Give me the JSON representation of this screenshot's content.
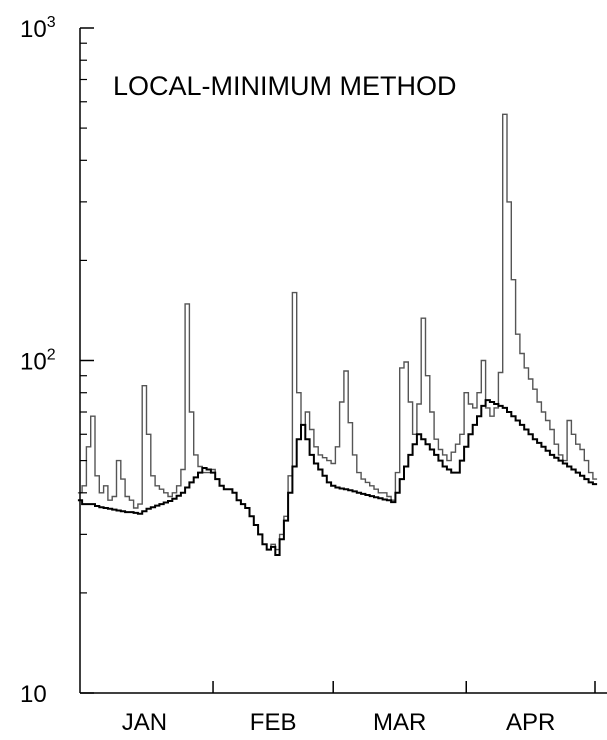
{
  "chart_data": {
    "type": "line",
    "title": "",
    "annotation": "LOCAL-MINIMUM METHOD",
    "xlabel": "",
    "ylabel": "",
    "y_scale": "log",
    "ylim": [
      10,
      1000
    ],
    "grid": false,
    "step_plot": true,
    "x_unit": "day of year",
    "xlim": [
      1,
      121
    ],
    "x_tick_labels": [
      "JAN",
      "FEB",
      "MAR",
      "APR"
    ],
    "y_tick_labels": [
      {
        "base": "10",
        "exp": ""
      },
      {
        "base": "10",
        "exp": "2"
      },
      {
        "base": "10",
        "exp": "3"
      }
    ],
    "series": [
      {
        "role": "streamflow",
        "color": "#555555",
        "points": [
          [
            1,
            40
          ],
          [
            2,
            42
          ],
          [
            3,
            55
          ],
          [
            4,
            68
          ],
          [
            5,
            45
          ],
          [
            6,
            40
          ],
          [
            7,
            42
          ],
          [
            8,
            38
          ],
          [
            9,
            39
          ],
          [
            10,
            50
          ],
          [
            11,
            44
          ],
          [
            12,
            39
          ],
          [
            13,
            38
          ],
          [
            14,
            36
          ],
          [
            15,
            37
          ],
          [
            16,
            84
          ],
          [
            17,
            60
          ],
          [
            18,
            45
          ],
          [
            19,
            42
          ],
          [
            20,
            41
          ],
          [
            21,
            40
          ],
          [
            22,
            39
          ],
          [
            23,
            40
          ],
          [
            24,
            42
          ],
          [
            25,
            47
          ],
          [
            26,
            148
          ],
          [
            27,
            70
          ],
          [
            28,
            52
          ],
          [
            29,
            48
          ],
          [
            30,
            46
          ],
          [
            31,
            46
          ],
          [
            32,
            47
          ],
          [
            33,
            44
          ],
          [
            34,
            42
          ],
          [
            35,
            41
          ],
          [
            36,
            41
          ],
          [
            37,
            40
          ],
          [
            38,
            38
          ],
          [
            39,
            37
          ],
          [
            40,
            36
          ],
          [
            41,
            34
          ],
          [
            42,
            32
          ],
          [
            43,
            30
          ],
          [
            44,
            28
          ],
          [
            45,
            27
          ],
          [
            46,
            28
          ],
          [
            47,
            27
          ],
          [
            48,
            30
          ],
          [
            49,
            34
          ],
          [
            50,
            45
          ],
          [
            51,
            160
          ],
          [
            52,
            80
          ],
          [
            53,
            64
          ],
          [
            54,
            70
          ],
          [
            55,
            62
          ],
          [
            56,
            55
          ],
          [
            57,
            52
          ],
          [
            58,
            51
          ],
          [
            59,
            50
          ],
          [
            60,
            49
          ],
          [
            61,
            55
          ],
          [
            62,
            75
          ],
          [
            63,
            93
          ],
          [
            64,
            65
          ],
          [
            65,
            52
          ],
          [
            66,
            46
          ],
          [
            67,
            44
          ],
          [
            68,
            43
          ],
          [
            69,
            42
          ],
          [
            70,
            41
          ],
          [
            71,
            40
          ],
          [
            72,
            40
          ],
          [
            73,
            39
          ],
          [
            74,
            38
          ],
          [
            75,
            46
          ],
          [
            76,
            95
          ],
          [
            77,
            99
          ],
          [
            78,
            75
          ],
          [
            79,
            60
          ],
          [
            80,
            74
          ],
          [
            81,
            134
          ],
          [
            82,
            90
          ],
          [
            83,
            70
          ],
          [
            84,
            58
          ],
          [
            85,
            54
          ],
          [
            86,
            52
          ],
          [
            87,
            50
          ],
          [
            88,
            53
          ],
          [
            89,
            56
          ],
          [
            90,
            60
          ],
          [
            91,
            80
          ],
          [
            92,
            74
          ],
          [
            93,
            72
          ],
          [
            94,
            80
          ],
          [
            95,
            100
          ],
          [
            96,
            72
          ],
          [
            97,
            68
          ],
          [
            98,
            72
          ],
          [
            99,
            92
          ],
          [
            100,
            550
          ],
          [
            101,
            300
          ],
          [
            102,
            175
          ],
          [
            103,
            120
          ],
          [
            104,
            105
          ],
          [
            105,
            95
          ],
          [
            106,
            88
          ],
          [
            107,
            82
          ],
          [
            108,
            75
          ],
          [
            109,
            70
          ],
          [
            110,
            66
          ],
          [
            111,
            62
          ],
          [
            112,
            56
          ],
          [
            113,
            52
          ],
          [
            114,
            50
          ],
          [
            115,
            66
          ],
          [
            116,
            60
          ],
          [
            117,
            56
          ],
          [
            118,
            54
          ],
          [
            119,
            50
          ],
          [
            120,
            46
          ],
          [
            121,
            44
          ]
        ]
      },
      {
        "role": "baseflow",
        "color": "#000000",
        "points": [
          [
            1,
            38
          ],
          [
            2,
            37
          ],
          [
            3,
            37
          ],
          [
            4,
            37
          ],
          [
            5,
            36.5
          ],
          [
            6,
            36.2
          ],
          [
            7,
            36
          ],
          [
            8,
            35.8
          ],
          [
            9,
            35.6
          ],
          [
            10,
            35.4
          ],
          [
            11,
            35.2
          ],
          [
            12,
            35
          ],
          [
            13,
            35
          ],
          [
            14,
            34.8
          ],
          [
            15,
            34.6
          ],
          [
            16,
            35.2
          ],
          [
            17,
            35.8
          ],
          [
            18,
            36.2
          ],
          [
            19,
            36.6
          ],
          [
            20,
            37
          ],
          [
            21,
            37.4
          ],
          [
            22,
            37.8
          ],
          [
            23,
            38.4
          ],
          [
            24,
            39.2
          ],
          [
            25,
            40
          ],
          [
            26,
            41.5
          ],
          [
            27,
            43
          ],
          [
            28,
            44.5
          ],
          [
            29,
            46
          ],
          [
            30,
            47.5
          ],
          [
            31,
            47
          ],
          [
            32,
            46
          ],
          [
            33,
            44
          ],
          [
            34,
            42
          ],
          [
            35,
            41
          ],
          [
            36,
            41
          ],
          [
            37,
            40
          ],
          [
            38,
            38
          ],
          [
            39,
            37
          ],
          [
            40,
            36
          ],
          [
            41,
            34
          ],
          [
            42,
            32
          ],
          [
            43,
            30
          ],
          [
            44,
            28
          ],
          [
            45,
            27
          ],
          [
            46,
            27.5
          ],
          [
            47,
            26
          ],
          [
            48,
            29
          ],
          [
            49,
            33
          ],
          [
            50,
            40
          ],
          [
            51,
            48
          ],
          [
            52,
            58
          ],
          [
            53,
            64
          ],
          [
            54,
            58
          ],
          [
            55,
            52
          ],
          [
            56,
            49
          ],
          [
            57,
            47
          ],
          [
            58,
            45
          ],
          [
            59,
            43
          ],
          [
            60,
            42
          ],
          [
            61,
            41.5
          ],
          [
            62,
            41.2
          ],
          [
            63,
            41
          ],
          [
            64,
            40.7
          ],
          [
            65,
            40.4
          ],
          [
            66,
            40
          ],
          [
            67,
            39.7
          ],
          [
            68,
            39.4
          ],
          [
            69,
            39.1
          ],
          [
            70,
            38.8
          ],
          [
            71,
            38.5
          ],
          [
            72,
            38.2
          ],
          [
            73,
            38
          ],
          [
            74,
            37.5
          ],
          [
            75,
            40
          ],
          [
            76,
            44
          ],
          [
            77,
            48
          ],
          [
            78,
            52
          ],
          [
            79,
            56
          ],
          [
            80,
            60
          ],
          [
            81,
            58
          ],
          [
            82,
            56
          ],
          [
            83,
            54
          ],
          [
            84,
            52
          ],
          [
            85,
            50
          ],
          [
            86,
            48
          ],
          [
            87,
            47
          ],
          [
            88,
            46
          ],
          [
            89,
            46
          ],
          [
            90,
            50
          ],
          [
            91,
            55
          ],
          [
            92,
            60
          ],
          [
            93,
            64
          ],
          [
            94,
            68
          ],
          [
            95,
            73
          ],
          [
            96,
            76
          ],
          [
            97,
            75
          ],
          [
            98,
            74
          ],
          [
            99,
            73
          ],
          [
            100,
            72
          ],
          [
            101,
            70
          ],
          [
            102,
            68
          ],
          [
            103,
            66
          ],
          [
            104,
            64
          ],
          [
            105,
            62
          ],
          [
            106,
            60
          ],
          [
            107,
            58
          ],
          [
            108,
            56.5
          ],
          [
            109,
            55
          ],
          [
            110,
            53.5
          ],
          [
            111,
            52
          ],
          [
            112,
            51
          ],
          [
            113,
            50
          ],
          [
            114,
            49
          ],
          [
            115,
            48
          ],
          [
            116,
            47
          ],
          [
            117,
            46
          ],
          [
            118,
            45
          ],
          [
            119,
            44
          ],
          [
            120,
            43
          ],
          [
            121,
            42.5
          ]
        ]
      }
    ]
  }
}
